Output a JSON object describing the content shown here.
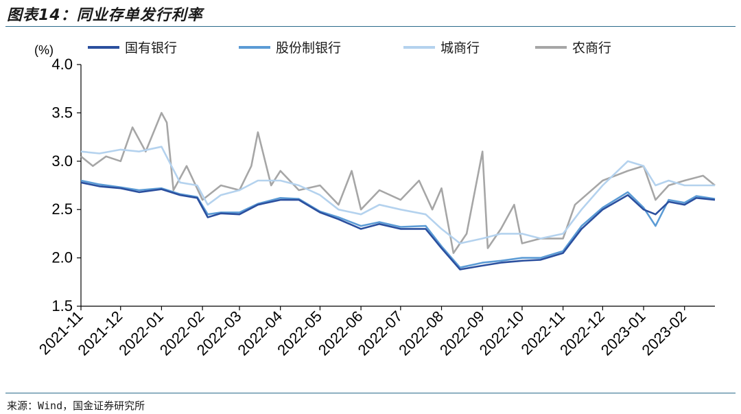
{
  "header": {
    "title": "图表14：同业存单发行利率"
  },
  "footer": {
    "source": "来源：Wind，国金证券研究所"
  },
  "chart_data": {
    "type": "line",
    "title": "图表14：同业存单发行利率",
    "ylabel": "(%)",
    "ylim": [
      1.5,
      4.0
    ],
    "yticks": [
      "1.5",
      "2.0",
      "2.5",
      "3.0",
      "3.5",
      "4.0"
    ],
    "x_start": "2021-11-01",
    "x_end": "2023-02-24",
    "xticks": [
      "2021-11",
      "2021-12",
      "2022-01",
      "2022-02",
      "2022-03",
      "2022-04",
      "2022-05",
      "2022-06",
      "2022-07",
      "2022-08",
      "2022-09",
      "2022-10",
      "2022-11",
      "2022-12",
      "2023-01",
      "2023-02"
    ],
    "legend_position": "top",
    "series": [
      {
        "name": "国有银行",
        "color": "#2b4f9e",
        "points": [
          [
            "2021-11-01",
            2.78
          ],
          [
            "2021-11-15",
            2.74
          ],
          [
            "2021-12-01",
            2.72
          ],
          [
            "2021-12-15",
            2.68
          ],
          [
            "2022-01-01",
            2.71
          ],
          [
            "2022-01-15",
            2.65
          ],
          [
            "2022-01-28",
            2.62
          ],
          [
            "2022-02-05",
            2.42
          ],
          [
            "2022-02-15",
            2.46
          ],
          [
            "2022-03-01",
            2.45
          ],
          [
            "2022-03-15",
            2.55
          ],
          [
            "2022-04-01",
            2.6
          ],
          [
            "2022-04-15",
            2.6
          ],
          [
            "2022-05-01",
            2.47
          ],
          [
            "2022-05-15",
            2.4
          ],
          [
            "2022-06-01",
            2.3
          ],
          [
            "2022-06-15",
            2.35
          ],
          [
            "2022-07-01",
            2.3
          ],
          [
            "2022-07-20",
            2.3
          ],
          [
            "2022-08-01",
            2.1
          ],
          [
            "2022-08-15",
            1.88
          ],
          [
            "2022-09-01",
            1.92
          ],
          [
            "2022-09-15",
            1.95
          ],
          [
            "2022-10-01",
            1.97
          ],
          [
            "2022-10-15",
            1.98
          ],
          [
            "2022-11-01",
            2.05
          ],
          [
            "2022-11-15",
            2.3
          ],
          [
            "2022-12-01",
            2.5
          ],
          [
            "2022-12-20",
            2.65
          ],
          [
            "2023-01-01",
            2.5
          ],
          [
            "2023-01-10",
            2.45
          ],
          [
            "2023-01-20",
            2.58
          ],
          [
            "2023-02-01",
            2.55
          ],
          [
            "2023-02-10",
            2.62
          ],
          [
            "2023-02-24",
            2.6
          ]
        ]
      },
      {
        "name": "股份制银行",
        "color": "#5b9bd5",
        "points": [
          [
            "2021-11-01",
            2.8
          ],
          [
            "2021-11-15",
            2.76
          ],
          [
            "2021-12-01",
            2.73
          ],
          [
            "2021-12-15",
            2.7
          ],
          [
            "2022-01-01",
            2.72
          ],
          [
            "2022-01-15",
            2.66
          ],
          [
            "2022-01-28",
            2.63
          ],
          [
            "2022-02-05",
            2.45
          ],
          [
            "2022-02-15",
            2.47
          ],
          [
            "2022-03-01",
            2.47
          ],
          [
            "2022-03-15",
            2.56
          ],
          [
            "2022-04-01",
            2.62
          ],
          [
            "2022-04-15",
            2.61
          ],
          [
            "2022-05-01",
            2.48
          ],
          [
            "2022-05-15",
            2.42
          ],
          [
            "2022-06-01",
            2.33
          ],
          [
            "2022-06-15",
            2.37
          ],
          [
            "2022-07-01",
            2.32
          ],
          [
            "2022-07-20",
            2.33
          ],
          [
            "2022-08-01",
            2.12
          ],
          [
            "2022-08-15",
            1.9
          ],
          [
            "2022-09-01",
            1.95
          ],
          [
            "2022-09-15",
            1.97
          ],
          [
            "2022-10-01",
            2.0
          ],
          [
            "2022-10-15",
            2.0
          ],
          [
            "2022-11-01",
            2.07
          ],
          [
            "2022-11-15",
            2.33
          ],
          [
            "2022-12-01",
            2.52
          ],
          [
            "2022-12-20",
            2.68
          ],
          [
            "2023-01-01",
            2.52
          ],
          [
            "2023-01-10",
            2.33
          ],
          [
            "2023-01-20",
            2.6
          ],
          [
            "2023-02-01",
            2.57
          ],
          [
            "2023-02-10",
            2.64
          ],
          [
            "2023-02-24",
            2.61
          ]
        ]
      },
      {
        "name": "城商行",
        "color": "#b4d2ee",
        "points": [
          [
            "2021-11-01",
            3.1
          ],
          [
            "2021-11-15",
            3.08
          ],
          [
            "2021-12-01",
            3.12
          ],
          [
            "2021-12-15",
            3.1
          ],
          [
            "2022-01-01",
            3.15
          ],
          [
            "2022-01-15",
            2.78
          ],
          [
            "2022-01-28",
            2.75
          ],
          [
            "2022-02-05",
            2.55
          ],
          [
            "2022-02-15",
            2.65
          ],
          [
            "2022-03-01",
            2.7
          ],
          [
            "2022-03-15",
            2.8
          ],
          [
            "2022-04-01",
            2.8
          ],
          [
            "2022-04-15",
            2.75
          ],
          [
            "2022-05-01",
            2.65
          ],
          [
            "2022-05-15",
            2.5
          ],
          [
            "2022-06-01",
            2.45
          ],
          [
            "2022-06-15",
            2.55
          ],
          [
            "2022-07-01",
            2.5
          ],
          [
            "2022-07-20",
            2.45
          ],
          [
            "2022-08-01",
            2.3
          ],
          [
            "2022-08-15",
            2.15
          ],
          [
            "2022-09-01",
            2.2
          ],
          [
            "2022-09-15",
            2.25
          ],
          [
            "2022-10-01",
            2.25
          ],
          [
            "2022-10-15",
            2.2
          ],
          [
            "2022-11-01",
            2.25
          ],
          [
            "2022-11-15",
            2.5
          ],
          [
            "2022-12-01",
            2.75
          ],
          [
            "2022-12-20",
            3.0
          ],
          [
            "2023-01-01",
            2.95
          ],
          [
            "2023-01-10",
            2.75
          ],
          [
            "2023-01-20",
            2.8
          ],
          [
            "2023-02-01",
            2.75
          ],
          [
            "2023-02-10",
            2.75
          ],
          [
            "2023-02-24",
            2.75
          ]
        ]
      },
      {
        "name": "农商行",
        "color": "#a6a6a6",
        "points": [
          [
            "2021-11-01",
            3.05
          ],
          [
            "2021-11-10",
            2.95
          ],
          [
            "2021-11-20",
            3.05
          ],
          [
            "2021-12-01",
            3.0
          ],
          [
            "2021-12-10",
            3.35
          ],
          [
            "2021-12-20",
            3.1
          ],
          [
            "2022-01-01",
            3.5
          ],
          [
            "2022-01-05",
            3.4
          ],
          [
            "2022-01-10",
            2.7
          ],
          [
            "2022-01-20",
            2.95
          ],
          [
            "2022-02-01",
            2.6
          ],
          [
            "2022-02-15",
            2.75
          ],
          [
            "2022-03-01",
            2.7
          ],
          [
            "2022-03-10",
            2.95
          ],
          [
            "2022-03-15",
            3.3
          ],
          [
            "2022-03-25",
            2.75
          ],
          [
            "2022-04-01",
            2.9
          ],
          [
            "2022-04-15",
            2.7
          ],
          [
            "2022-05-01",
            2.75
          ],
          [
            "2022-05-15",
            2.55
          ],
          [
            "2022-05-25",
            2.9
          ],
          [
            "2022-06-01",
            2.5
          ],
          [
            "2022-06-15",
            2.7
          ],
          [
            "2022-07-01",
            2.6
          ],
          [
            "2022-07-15",
            2.8
          ],
          [
            "2022-07-25",
            2.5
          ],
          [
            "2022-08-01",
            2.72
          ],
          [
            "2022-08-10",
            2.05
          ],
          [
            "2022-08-20",
            2.25
          ],
          [
            "2022-09-01",
            3.1
          ],
          [
            "2022-09-05",
            2.1
          ],
          [
            "2022-09-15",
            2.3
          ],
          [
            "2022-09-25",
            2.55
          ],
          [
            "2022-10-01",
            2.15
          ],
          [
            "2022-10-15",
            2.2
          ],
          [
            "2022-11-01",
            2.2
          ],
          [
            "2022-11-10",
            2.55
          ],
          [
            "2022-12-01",
            2.8
          ],
          [
            "2022-12-20",
            2.9
          ],
          [
            "2023-01-01",
            2.95
          ],
          [
            "2023-01-10",
            2.6
          ],
          [
            "2023-01-20",
            2.75
          ],
          [
            "2023-02-01",
            2.8
          ],
          [
            "2023-02-15",
            2.85
          ],
          [
            "2023-02-24",
            2.75
          ]
        ]
      }
    ]
  }
}
